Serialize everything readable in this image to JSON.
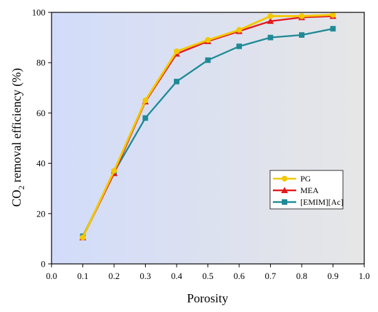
{
  "chart_data": {
    "type": "line",
    "xlabel": "Porosity",
    "ylabel_main": "CO",
    "ylabel_sub": "2",
    "ylabel_rest": " removal efficiency (%)",
    "xlim": [
      0.0,
      1.0
    ],
    "ylim": [
      0,
      100
    ],
    "xticks": [
      "0.0",
      "0.1",
      "0.2",
      "0.3",
      "0.4",
      "0.5",
      "0.6",
      "0.7",
      "0.8",
      "0.9",
      "1.0"
    ],
    "yticks": [
      "0",
      "20",
      "40",
      "60",
      "80",
      "100"
    ],
    "x": [
      0.1,
      0.2,
      0.3,
      0.4,
      0.5,
      0.6,
      0.7,
      0.8,
      0.9
    ],
    "series": [
      {
        "name": "PG",
        "color": "#f2c800",
        "marker": "circle",
        "values": [
          10.5,
          37.0,
          65.0,
          84.5,
          89.0,
          93.0,
          98.5,
          98.5,
          99.0
        ]
      },
      {
        "name": "MEA",
        "color": "#e31a1c",
        "marker": "triangle",
        "values": [
          10.5,
          36.0,
          64.5,
          83.5,
          88.5,
          92.5,
          96.5,
          98.0,
          98.5
        ]
      },
      {
        "name": "[EMIM][Ac]",
        "color": "#1f8a96",
        "marker": "square",
        "values": [
          11.0,
          36.5,
          58.0,
          72.5,
          81.0,
          86.5,
          90.0,
          91.0,
          93.5
        ]
      }
    ],
    "legend_position": "center-right",
    "grid": false,
    "background_gradient": [
      "#d2dcfa",
      "#e6e6e6"
    ]
  }
}
